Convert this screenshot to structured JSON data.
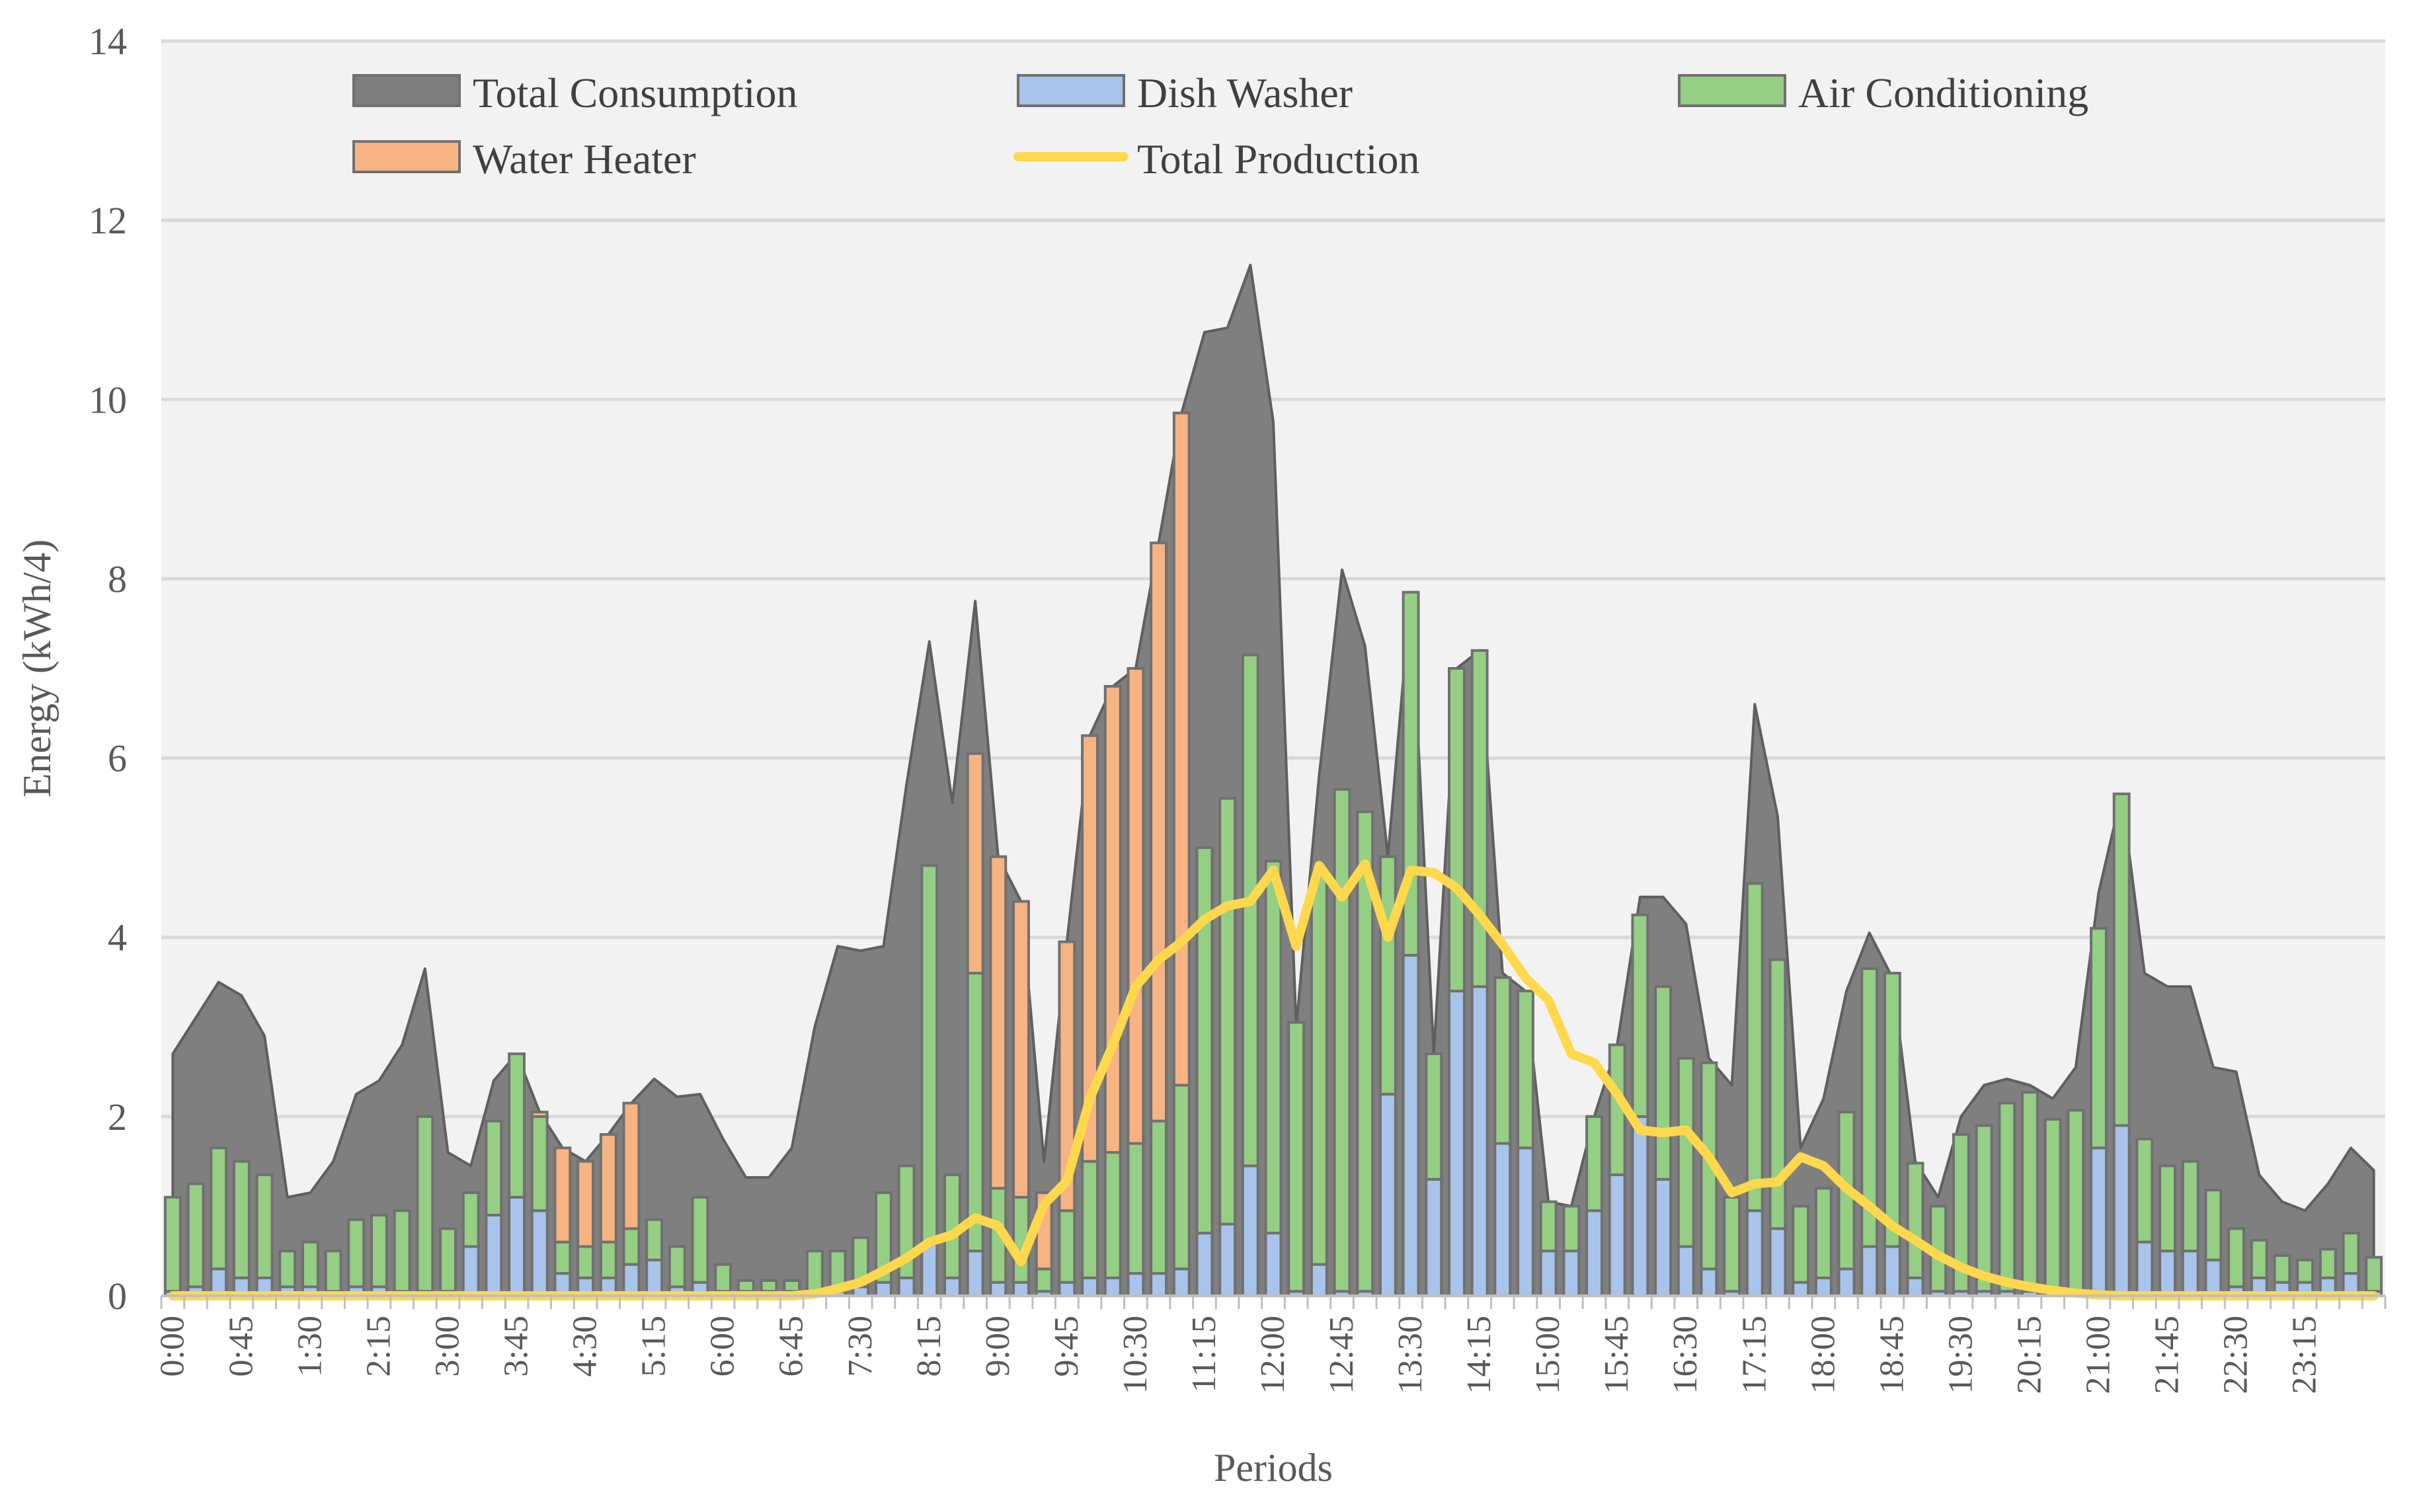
{
  "chart_data": {
    "type": "bar",
    "title": "",
    "xlabel": "Periods",
    "ylabel": "Energy (kWh/4)",
    "ylim": [
      0,
      14
    ],
    "yticks": [
      "0",
      "2",
      "4",
      "6",
      "8",
      "10",
      "12",
      "14"
    ],
    "grid": true,
    "legend_position": "top",
    "x_tick_labels": [
      "0:00",
      "0:45",
      "1:30",
      "2:15",
      "3:00",
      "3:45",
      "4:30",
      "5:15",
      "6:00",
      "6:45",
      "7:30",
      "8:15",
      "9:00",
      "9:45",
      "10:30",
      "11:15",
      "12:00",
      "12:45",
      "13:30",
      "14:15",
      "15:00",
      "15:45",
      "16:30",
      "17:15",
      "18:00",
      "18:45",
      "19:30",
      "20:15",
      "21:00",
      "21:45",
      "22:30",
      "23:15"
    ],
    "colors": {
      "total_consumption": "#7f7f7f",
      "dish_washer": "#a9c4eb",
      "air_conditioning": "#94cf84",
      "water_heater": "#f8b383",
      "total_production": "#ffd84d",
      "bar_outline": "#707070",
      "plot_background": "#f2f2f2",
      "grid": "#d9d9d9"
    },
    "series": [
      {
        "name": "Total Consumption",
        "kind": "area",
        "values": [
          2.7,
          3.1,
          3.5,
          3.35,
          2.9,
          1.1,
          1.15,
          1.5,
          2.25,
          2.4,
          2.8,
          3.65,
          1.6,
          1.45,
          2.4,
          2.7,
          2.05,
          1.65,
          1.5,
          1.8,
          2.15,
          2.42,
          2.22,
          2.25,
          1.75,
          1.32,
          1.32,
          1.65,
          3.0,
          3.9,
          3.85,
          3.9,
          5.7,
          7.3,
          5.5,
          7.75,
          4.9,
          4.4,
          1.5,
          3.95,
          6.25,
          6.8,
          7.0,
          8.4,
          9.85,
          10.75,
          10.8,
          11.5,
          9.75,
          3.0,
          5.8,
          8.1,
          7.25,
          4.9,
          7.85,
          2.7,
          7.0,
          7.2,
          3.6,
          3.4,
          1.05,
          1.0,
          2.0,
          2.8,
          4.45,
          4.45,
          4.15,
          2.65,
          2.35,
          6.6,
          5.35,
          1.65,
          2.2,
          3.4,
          4.05,
          3.55,
          1.5,
          1.1,
          2.0,
          2.35,
          2.42,
          2.35,
          2.2,
          2.55,
          4.5,
          5.6,
          3.6,
          3.45,
          3.45,
          2.55,
          2.5,
          1.35,
          1.05,
          0.95,
          1.25,
          1.65,
          1.4
        ]
      },
      {
        "name": "Dish Washer",
        "kind": "stacked-bar",
        "values": [
          0.05,
          0.1,
          0.3,
          0.2,
          0.2,
          0.1,
          0.1,
          0.05,
          0.1,
          0.1,
          0.05,
          0.05,
          0.05,
          0.55,
          0.9,
          1.1,
          0.95,
          0.25,
          0.2,
          0.2,
          0.35,
          0.4,
          0.1,
          0.15,
          0.05,
          0.05,
          0.05,
          0.05,
          0.05,
          0.05,
          0.1,
          0.15,
          0.2,
          0.6,
          0.2,
          0.5,
          0.15,
          0.15,
          0.05,
          0.15,
          0.2,
          0.2,
          0.25,
          0.25,
          0.3,
          0.7,
          0.8,
          1.45,
          0.7,
          0.05,
          0.35,
          0.05,
          0.05,
          2.25,
          3.8,
          1.3,
          3.4,
          3.45,
          1.7,
          1.65,
          0.5,
          0.5,
          0.95,
          1.35,
          2.0,
          1.3,
          0.55,
          0.3,
          0.05,
          0.95,
          0.75,
          0.15,
          0.2,
          0.3,
          0.55,
          0.55,
          0.2,
          0.05,
          0.05,
          0.05,
          0.05,
          0.05,
          0.05,
          0.05,
          1.65,
          1.9,
          0.6,
          0.5,
          0.5,
          0.4,
          0.1,
          0.2,
          0.15,
          0.15,
          0.2,
          0.25,
          0.05
        ]
      },
      {
        "name": "Air Conditioning",
        "kind": "stacked-bar",
        "values": [
          1.05,
          1.15,
          1.35,
          1.3,
          1.15,
          0.4,
          0.5,
          0.45,
          0.75,
          0.8,
          0.9,
          1.95,
          0.7,
          0.6,
          1.05,
          1.6,
          1.05,
          0.35,
          0.35,
          0.4,
          0.4,
          0.45,
          0.45,
          0.95,
          0.3,
          0.12,
          0.12,
          0.12,
          0.45,
          0.45,
          0.55,
          1.0,
          1.25,
          4.2,
          1.15,
          3.1,
          1.05,
          0.95,
          0.25,
          0.8,
          1.3,
          1.4,
          1.45,
          1.7,
          2.05,
          4.3,
          4.75,
          5.7,
          4.15,
          3.0,
          4.4,
          5.6,
          5.35,
          2.65,
          4.05,
          1.4,
          3.6,
          3.75,
          1.85,
          1.75,
          0.55,
          0.5,
          1.05,
          1.45,
          2.25,
          2.15,
          2.1,
          2.3,
          1.05,
          3.65,
          3.0,
          0.85,
          1.0,
          1.75,
          3.1,
          3.05,
          1.28,
          0.95,
          1.75,
          1.85,
          2.1,
          2.22,
          1.92,
          2.02,
          2.45,
          3.7,
          1.15,
          0.95,
          1.0,
          0.78,
          0.65,
          0.42,
          0.3,
          0.25,
          0.32,
          0.45,
          0.38
        ]
      },
      {
        "name": "Water Heater",
        "kind": "stacked-bar",
        "values": [
          0,
          0,
          0,
          0,
          0,
          0,
          0,
          0,
          0,
          0,
          0,
          0,
          0,
          0,
          0,
          0,
          0.05,
          1.05,
          0.95,
          1.2,
          1.4,
          0,
          0,
          0,
          0,
          0,
          0,
          0,
          0,
          0,
          0,
          0,
          0,
          0,
          0,
          2.45,
          3.7,
          3.3,
          0.85,
          3.0,
          4.75,
          5.2,
          5.3,
          6.45,
          7.5,
          0,
          0,
          0,
          0,
          0,
          0,
          0,
          0,
          0,
          0,
          0,
          0,
          0,
          0,
          0,
          0,
          0,
          0,
          0,
          0,
          0,
          0,
          0,
          0,
          0,
          0,
          0,
          0,
          0,
          0,
          0,
          0,
          0,
          0,
          0,
          0,
          0,
          0,
          0,
          0,
          0,
          0,
          0,
          0,
          0,
          0,
          0,
          0,
          0,
          0,
          0,
          0
        ]
      },
      {
        "name": "Total Production",
        "kind": "line",
        "values": [
          0,
          0,
          0,
          0,
          0,
          0,
          0,
          0,
          0,
          0,
          0,
          0,
          0,
          0,
          0,
          0,
          0,
          0,
          0,
          0,
          0,
          0,
          0,
          0,
          0,
          0,
          0,
          0,
          0.02,
          0.08,
          0.15,
          0.28,
          0.42,
          0.6,
          0.68,
          0.87,
          0.78,
          0.38,
          1.02,
          1.28,
          2.2,
          2.8,
          3.45,
          3.75,
          3.95,
          4.2,
          4.35,
          4.4,
          4.75,
          3.9,
          4.8,
          4.45,
          4.82,
          4.0,
          4.75,
          4.72,
          4.55,
          4.25,
          3.92,
          3.55,
          3.3,
          2.7,
          2.6,
          2.25,
          1.85,
          1.82,
          1.85,
          1.55,
          1.15,
          1.25,
          1.27,
          1.55,
          1.45,
          1.2,
          1.0,
          0.78,
          0.62,
          0.45,
          0.32,
          0.22,
          0.15,
          0.1,
          0.06,
          0.03,
          0.01,
          0,
          0,
          0,
          0,
          0,
          0,
          0,
          0,
          0,
          0,
          0,
          0
        ]
      }
    ],
    "legend": [
      {
        "label": "Total Consumption",
        "swatch": "box",
        "color_key": "total_consumption"
      },
      {
        "label": "Dish Washer",
        "swatch": "box",
        "color_key": "dish_washer"
      },
      {
        "label": "Air Conditioning",
        "swatch": "box",
        "color_key": "air_conditioning"
      },
      {
        "label": "Water Heater",
        "swatch": "box",
        "color_key": "water_heater"
      },
      {
        "label": "Total Production",
        "swatch": "line",
        "color_key": "total_production"
      }
    ]
  }
}
